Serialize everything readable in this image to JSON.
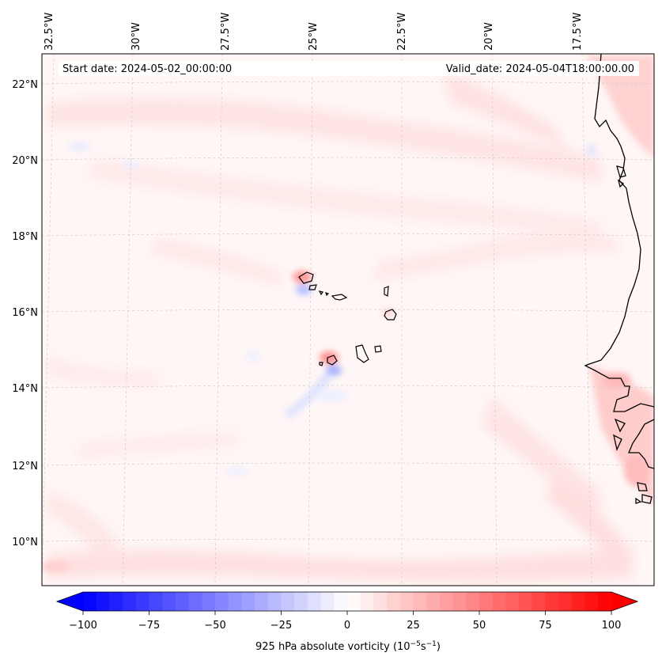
{
  "header": {
    "start_date": "Start date: 2024-05-02_00:00:00",
    "valid_date": "Valid_date: 2024-05-04T18:00:00.00"
  },
  "map": {
    "lon_labels": [
      "32.5°W",
      "30°W",
      "27.5°W",
      "25°W",
      "22.5°W",
      "20°W",
      "17.5°W"
    ],
    "lat_labels": [
      "22°N",
      "20°N",
      "18°N",
      "16°N",
      "14°N",
      "12°N",
      "10°N"
    ],
    "gridlines": true,
    "field_colors": {
      "positive": "#ff0000",
      "negative": "#0000ff",
      "neutral": "#ffffff"
    }
  },
  "colorbar": {
    "label_prefix": "925 hPa absolute vorticity (10",
    "label_exp1": "−5",
    "label_mid": "s",
    "label_exp2": "−1",
    "label_suffix": ")",
    "ticks": [
      "−100",
      "−75",
      "−50",
      "−25",
      "0",
      "25",
      "50",
      "75",
      "100"
    ],
    "min": -100,
    "max": 100,
    "extend": "both"
  }
}
